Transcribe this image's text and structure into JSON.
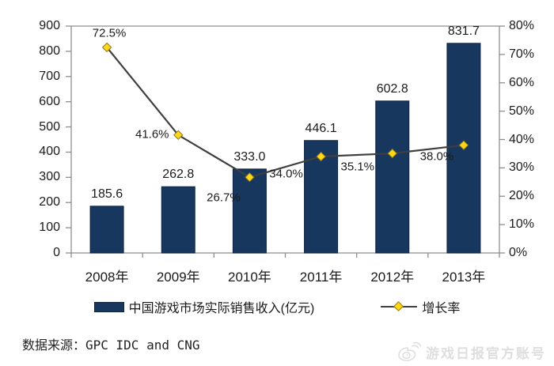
{
  "chart_data": {
    "type": "bar",
    "subtype": "bar-line-combo",
    "categories": [
      "2008年",
      "2009年",
      "2010年",
      "2011年",
      "2012年",
      "2013年"
    ],
    "series": [
      {
        "name": "中国游戏市场实际销售收入(亿元)",
        "type": "bar",
        "axis": "left",
        "values": [
          185.6,
          262.8,
          333.0,
          446.1,
          602.8,
          831.7
        ],
        "labels": [
          "185.6",
          "262.8",
          "333.0",
          "446.1",
          "602.8",
          "831.7"
        ]
      },
      {
        "name": "增长率",
        "type": "line",
        "axis": "right",
        "values": [
          72.5,
          41.6,
          26.7,
          34.0,
          35.1,
          38.0
        ],
        "labels": [
          "72.5%",
          "41.6%",
          "26.7%",
          "34.0%",
          "35.1%",
          "38.0%"
        ],
        "label_offsets": [
          [
            3,
            -18
          ],
          [
            -33,
            -1
          ],
          [
            -33,
            26
          ],
          [
            -44,
            22
          ],
          [
            -44,
            17
          ],
          [
            -34,
            14
          ]
        ]
      }
    ],
    "left_axis": {
      "min": 0,
      "max": 900,
      "step": 100,
      "ticks": [
        "900",
        "800",
        "700",
        "600",
        "500",
        "400",
        "300",
        "200",
        "100",
        "0"
      ]
    },
    "right_axis": {
      "min": 0,
      "max": 80,
      "step": 10,
      "ticks": [
        "80%",
        "70%",
        "60%",
        "50%",
        "40%",
        "30%",
        "20%",
        "10%",
        "0%"
      ]
    },
    "grid": "top-border-only",
    "legend_position": "bottom"
  },
  "legend": {
    "bar_label": "中国游戏市场实际销售收入(亿元)",
    "line_label": "增长率"
  },
  "source": "数据来源：GPC IDC and CNG",
  "watermark": {
    "icon": "weibo-icon",
    "text": "游戏日报官方账号"
  },
  "colors": {
    "bar": "#17375E",
    "bar_border": "#0d2340",
    "line": "#3f3f3f",
    "marker_fill": "#ffd718",
    "marker_stroke": "#8f7a1a",
    "axis": "#8e8e8e",
    "text": "#1a1a1a",
    "watermark": "#dedede"
  }
}
